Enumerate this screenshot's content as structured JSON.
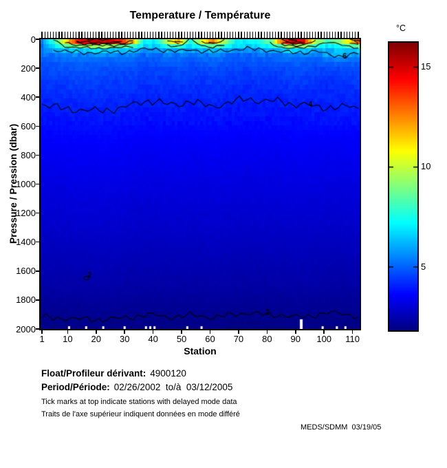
{
  "title": "Temperature / Température",
  "credit": "MEDS/SDMM  03/19/05",
  "footer": {
    "float_label": "Float/Profileur dérivant:",
    "float_value": "4900120",
    "period_label": "Period/Période:",
    "period_value": "02/26/2002  to/à  03/12/2005",
    "note_en": "Tick marks at top indicate stations with delayed mode data",
    "note_fr": "Traits de l'axe supérieur indiquent données en mode différé"
  },
  "colors": {
    "axis": "#000000",
    "background": "#ffffff",
    "deep_water": "#0000a0",
    "surface_warm": "#cc0000"
  },
  "chart_data": {
    "type": "heatmap",
    "title": "Temperature / Température",
    "xlabel": "Station",
    "ylabel": "Pressure / Pression (dbar)",
    "x_range": [
      0.5,
      112.5
    ],
    "y_range": [
      0,
      2000
    ],
    "y_inverted": true,
    "grid_lines": false,
    "x_ticks": [
      1,
      10,
      20,
      30,
      40,
      50,
      60,
      70,
      80,
      90,
      100,
      110
    ],
    "y_ticks": [
      0,
      200,
      400,
      600,
      800,
      1000,
      1200,
      1400,
      1600,
      1800,
      2000
    ],
    "colorbar": {
      "label": "°C",
      "ticks": [
        5,
        10,
        15
      ],
      "min": 1.8,
      "max": 16.2,
      "colormap": "jet",
      "position": "right"
    },
    "contour_levels": [
      2,
      4,
      6,
      8,
      10,
      12,
      14,
      16
    ],
    "contour_labels": [
      {
        "level": 2,
        "station": 17.5,
        "pressure": 1630,
        "closed_loop": true
      },
      {
        "level": 2,
        "station": 80,
        "pressure": 1885,
        "closed_loop": false
      },
      {
        "level": 4,
        "station": 95,
        "pressure": 452,
        "closed_loop": false
      },
      {
        "level": 6,
        "station": 107,
        "pressure": 118,
        "closed_loop": false
      }
    ],
    "delayed_mode_ticks": {
      "station_from": 1,
      "station_to": 112,
      "note": "tick above top axis at every station"
    },
    "missing_bottom": [
      {
        "station": 10.5,
        "tall": false
      },
      {
        "station": 16.5,
        "tall": false
      },
      {
        "station": 22.5,
        "tall": false
      },
      {
        "station": 30,
        "tall": false
      },
      {
        "station": 37.5,
        "tall": false
      },
      {
        "station": 39,
        "tall": false
      },
      {
        "station": 40.5,
        "tall": false
      },
      {
        "station": 52,
        "tall": false
      },
      {
        "station": 57,
        "tall": false
      },
      {
        "station": 92,
        "tall": true
      },
      {
        "station": 99.5,
        "tall": false
      },
      {
        "station": 104.5,
        "tall": false
      },
      {
        "station": 107.5,
        "tall": false
      }
    ],
    "grid": {
      "stations": [
        1,
        5,
        9,
        13,
        17,
        21,
        25,
        29,
        33,
        37,
        41,
        45,
        49,
        53,
        57,
        61,
        65,
        69,
        73,
        77,
        81,
        85,
        89,
        93,
        97,
        101,
        105,
        109,
        112
      ],
      "pressures": [
        0,
        20,
        40,
        70,
        100,
        150,
        200,
        300,
        400,
        500,
        700,
        900,
        1100,
        1300,
        1500,
        1700,
        1850,
        1950,
        2000
      ],
      "temperatures": [
        [
          5.5,
          8.0,
          11.5,
          15.0,
          16.0,
          16.4,
          16.2,
          15.0,
          12.5,
          7.5,
          7.2,
          10.5,
          13.0,
          8.0,
          11.0,
          13.5,
          10.0,
          7.5,
          7.2,
          7.5,
          9.0,
          14.0,
          16.3,
          15.8,
          10.5,
          8.5,
          9.5,
          12.0,
          14.5
        ],
        [
          5.4,
          7.6,
          10.6,
          13.6,
          14.6,
          15.0,
          14.8,
          13.6,
          11.2,
          7.2,
          7.0,
          9.6,
          11.6,
          7.6,
          10.0,
          12.2,
          9.2,
          7.2,
          7.0,
          7.2,
          8.4,
          12.6,
          14.8,
          14.2,
          9.6,
          8.0,
          8.8,
          10.8,
          13.0
        ],
        [
          5.3,
          6.9,
          8.6,
          9.6,
          10.1,
          10.3,
          10.1,
          9.5,
          8.6,
          6.8,
          6.7,
          7.9,
          8.7,
          7.0,
          8.3,
          9.1,
          7.9,
          6.9,
          6.8,
          6.9,
          7.5,
          9.3,
          10.3,
          10.0,
          8.1,
          7.2,
          7.7,
          8.7,
          9.6
        ],
        [
          5.2,
          6.0,
          6.6,
          6.9,
          7.0,
          7.1,
          7.0,
          6.8,
          6.5,
          6.0,
          5.9,
          6.3,
          6.6,
          6.0,
          6.4,
          6.7,
          6.3,
          6.0,
          5.9,
          6.0,
          6.2,
          6.8,
          7.1,
          7.0,
          6.4,
          6.1,
          6.3,
          6.6,
          6.9
        ],
        [
          5.3,
          5.4,
          5.5,
          5.5,
          5.6,
          5.6,
          5.5,
          5.5,
          5.4,
          5.2,
          5.2,
          5.3,
          5.4,
          5.2,
          5.3,
          5.5,
          5.3,
          5.2,
          5.1,
          5.2,
          5.2,
          5.4,
          5.6,
          5.5,
          5.3,
          6.1,
          6.4,
          6.2,
          5.8
        ],
        [
          4.8,
          4.9,
          5.0,
          5.0,
          5.0,
          5.1,
          5.0,
          5.0,
          4.9,
          4.8,
          4.8,
          4.9,
          4.9,
          4.8,
          4.9,
          5.0,
          4.9,
          4.8,
          4.8,
          4.8,
          4.8,
          4.9,
          5.0,
          5.0,
          4.9,
          5.0,
          5.2,
          5.1,
          5.0
        ],
        [
          4.6,
          4.7,
          4.7,
          4.8,
          4.8,
          4.8,
          4.7,
          4.7,
          4.7,
          4.6,
          4.6,
          4.6,
          4.7,
          4.6,
          4.6,
          4.7,
          4.6,
          4.6,
          4.5,
          4.6,
          4.6,
          4.6,
          4.7,
          4.7,
          4.6,
          4.6,
          4.6,
          4.7,
          4.7
        ],
        [
          4.3,
          4.4,
          4.4,
          4.5,
          4.5,
          4.5,
          4.4,
          4.4,
          4.4,
          4.3,
          4.3,
          4.3,
          4.4,
          4.3,
          4.3,
          4.4,
          4.3,
          4.3,
          4.2,
          4.3,
          4.3,
          4.3,
          4.4,
          4.4,
          4.3,
          4.2,
          4.3,
          4.3,
          4.4
        ],
        [
          4.1,
          4.15,
          4.2,
          4.2,
          4.2,
          4.25,
          4.2,
          4.15,
          4.1,
          4.05,
          4.05,
          4.1,
          4.1,
          4.05,
          4.1,
          4.15,
          4.1,
          4.05,
          4.02,
          4.05,
          4.05,
          4.05,
          4.1,
          4.1,
          4.1,
          4.08,
          4.08,
          4.1,
          4.12
        ],
        [
          3.9,
          3.92,
          3.95,
          3.97,
          3.98,
          3.98,
          3.97,
          3.95,
          3.9,
          3.87,
          3.87,
          3.9,
          3.9,
          3.87,
          3.9,
          3.92,
          3.88,
          3.86,
          3.84,
          3.86,
          3.86,
          3.87,
          3.9,
          3.9,
          3.95,
          3.97,
          3.96,
          3.95,
          3.96
        ],
        [
          3.55,
          3.57,
          3.58,
          3.6,
          3.6,
          3.62,
          3.6,
          3.58,
          3.55,
          3.52,
          3.52,
          3.55,
          3.55,
          3.52,
          3.54,
          3.56,
          3.53,
          3.51,
          3.5,
          3.51,
          3.52,
          3.53,
          3.55,
          3.55,
          3.52,
          3.5,
          3.5,
          3.52,
          3.54
        ],
        [
          3.3,
          3.32,
          3.33,
          3.35,
          3.35,
          3.36,
          3.35,
          3.33,
          3.3,
          3.28,
          3.28,
          3.3,
          3.3,
          3.28,
          3.29,
          3.31,
          3.29,
          3.27,
          3.26,
          3.27,
          3.28,
          3.28,
          3.3,
          3.3,
          3.28,
          3.26,
          3.26,
          3.28,
          3.3
        ],
        [
          3.05,
          3.07,
          3.08,
          3.1,
          3.1,
          3.1,
          3.09,
          3.08,
          3.05,
          3.03,
          3.03,
          3.05,
          3.05,
          3.03,
          3.04,
          3.06,
          3.04,
          3.02,
          3.01,
          3.02,
          3.03,
          3.03,
          3.05,
          3.05,
          3.03,
          3.01,
          3.01,
          3.03,
          3.05
        ],
        [
          2.85,
          2.86,
          2.87,
          2.88,
          2.88,
          2.89,
          2.88,
          2.87,
          2.85,
          2.83,
          2.83,
          2.85,
          2.85,
          2.83,
          2.84,
          2.86,
          2.84,
          2.82,
          2.81,
          2.82,
          2.83,
          2.83,
          2.85,
          2.85,
          2.83,
          2.81,
          2.81,
          2.83,
          2.85
        ],
        [
          2.6,
          2.61,
          2.62,
          2.63,
          2.63,
          2.64,
          2.63,
          2.62,
          2.6,
          2.58,
          2.58,
          2.6,
          2.6,
          2.58,
          2.59,
          2.61,
          2.59,
          2.57,
          2.56,
          2.57,
          2.58,
          2.58,
          2.6,
          2.6,
          2.58,
          2.56,
          2.56,
          2.58,
          2.6
        ],
        [
          2.35,
          2.36,
          2.37,
          2.38,
          2.38,
          2.39,
          2.38,
          2.37,
          2.35,
          2.33,
          2.33,
          2.35,
          2.35,
          2.33,
          2.34,
          2.36,
          2.34,
          2.32,
          2.31,
          2.32,
          2.33,
          2.33,
          2.35,
          2.35,
          2.33,
          2.31,
          2.31,
          2.33,
          2.35
        ],
        [
          2.1,
          2.11,
          2.12,
          2.13,
          2.13,
          2.14,
          2.13,
          2.12,
          2.1,
          2.08,
          2.08,
          2.1,
          2.1,
          2.08,
          2.09,
          2.11,
          2.09,
          2.07,
          2.06,
          2.07,
          2.08,
          2.08,
          2.1,
          2.1,
          2.08,
          2.06,
          2.06,
          2.08,
          2.1
        ],
        [
          1.95,
          1.96,
          1.96,
          1.97,
          1.97,
          1.98,
          1.97,
          1.96,
          1.95,
          1.93,
          1.93,
          1.95,
          1.95,
          1.93,
          1.94,
          1.96,
          1.94,
          1.92,
          1.91,
          1.92,
          1.93,
          1.93,
          1.95,
          1.95,
          1.93,
          1.91,
          1.91,
          1.93,
          1.95
        ],
        [
          1.88,
          1.89,
          1.89,
          1.9,
          1.9,
          1.91,
          1.9,
          1.89,
          1.88,
          1.86,
          1.86,
          1.88,
          1.88,
          1.86,
          1.87,
          1.89,
          1.87,
          1.85,
          1.84,
          1.85,
          1.86,
          1.86,
          1.88,
          1.88,
          1.86,
          1.84,
          1.84,
          1.86,
          1.88
        ]
      ]
    }
  }
}
